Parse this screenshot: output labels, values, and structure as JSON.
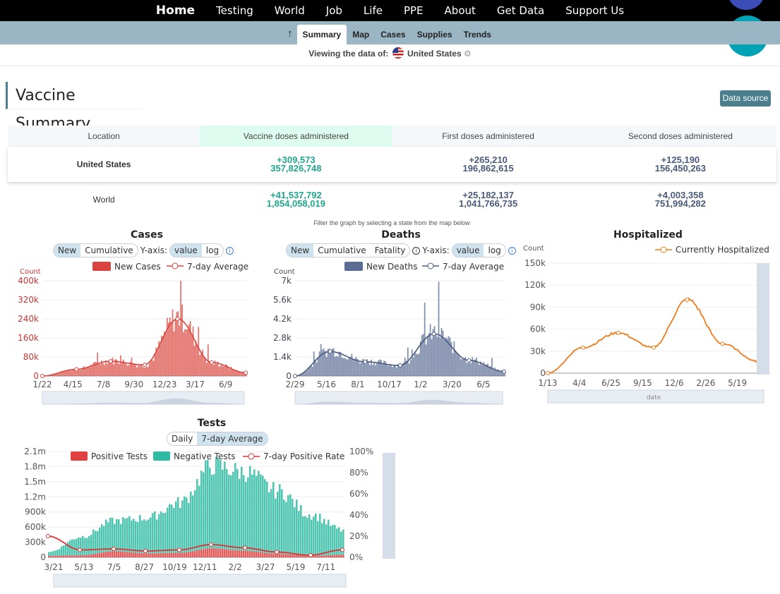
{
  "nav": {
    "items": [
      "Home",
      "Testing",
      "World",
      "Job",
      "Life",
      "PPE",
      "About",
      "Get Data",
      "Support Us"
    ]
  },
  "subnav": {
    "up": "↑",
    "tabs": [
      "Summary",
      "Map",
      "Cases",
      "Supplies",
      "Trends"
    ],
    "active": "Summary"
  },
  "viewing": {
    "label": "Viewing the data of:",
    "country": "United States"
  },
  "page_title": "Vaccine Summary",
  "data_source": "Data source",
  "vaccine_table": {
    "headers": [
      "Location",
      "Vaccine doses administered",
      "First doses administered",
      "Second doses administered"
    ],
    "rows": [
      {
        "location": "United States",
        "doses_change": "+309,573",
        "doses_total": "357,826,748",
        "first_change": "+265,210",
        "first_total": "196,862,615",
        "second_change": "+125,190",
        "second_total": "156,450,263"
      },
      {
        "location": "World",
        "doses_change": "+41,537,792",
        "doses_total": "1,854,058,019",
        "first_change": "+25,182,137",
        "first_total": "1,041,766,735",
        "second_change": "+4,003,358",
        "second_total": "751,994,282"
      }
    ]
  },
  "filter_note": "Filter the graph by selecting a state from the map below",
  "cases": {
    "title": "Cases",
    "toggle": [
      "New",
      "Cumulative"
    ],
    "yaxis_label": "Y-axis:",
    "yaxis": [
      "value",
      "log"
    ],
    "ylabel": "Count",
    "legend": [
      "New Cases",
      "7-day Average"
    ],
    "yticks": [
      "0",
      "80k",
      "160k",
      "240k",
      "320k",
      "400k"
    ],
    "xticks": [
      "1/22",
      "4/15",
      "7/8",
      "9/30",
      "12/23",
      "3/17",
      "6/9"
    ]
  },
  "deaths": {
    "title": "Deaths",
    "toggle": [
      "New",
      "Cumulative",
      "Fatality"
    ],
    "yaxis_label": "Y-axis:",
    "yaxis": [
      "value",
      "log"
    ],
    "ylabel": "Count",
    "legend": [
      "New Deaths",
      "7-day Average"
    ],
    "yticks": [
      "0",
      "1.4k",
      "2.8k",
      "4.2k",
      "5.6k",
      "7k"
    ],
    "xticks": [
      "2/29",
      "5/16",
      "8/1",
      "10/17",
      "1/2",
      "3/20",
      "6/5"
    ]
  },
  "hosp": {
    "title": "Hospitalized",
    "ylabel": "Count",
    "xlabel": "date",
    "legend": [
      "Currently Hospitalized"
    ],
    "yticks": [
      "0",
      "30k",
      "60k",
      "90k",
      "120k",
      "150k"
    ],
    "xticks": [
      "1/13",
      "4/4",
      "6/25",
      "9/15",
      "12/6",
      "2/26",
      "5/19"
    ]
  },
  "tests": {
    "title": "Tests",
    "toggle": [
      "Daily",
      "7-day Average"
    ],
    "legend": [
      "Positive Tests",
      "Negative Tests",
      "7-day Positive Rate"
    ],
    "yticks": [
      "0",
      "300k",
      "600k",
      "900k",
      "1.2m",
      "1.5m",
      "1.8m",
      "2.1m"
    ],
    "y2ticks": [
      "0%",
      "20%",
      "40%",
      "60%",
      "80%",
      "100%"
    ],
    "xticks": [
      "3/21",
      "5/13",
      "7/5",
      "8/27",
      "10/19",
      "12/11",
      "2/2",
      "3/27",
      "5/19",
      "7/11"
    ]
  },
  "colors": {
    "cases": "#d9453e",
    "deaths": "#5a6c94",
    "hosp": "#f07b1c",
    "neg": "#2fbba3",
    "nav": "#000000",
    "subnav": "#9ab5c4",
    "accent": "#4b7f8e"
  },
  "chart_data": [
    {
      "type": "bar",
      "title": "Cases",
      "ylabel": "Count",
      "ylim": [
        0,
        400000
      ],
      "x": [
        "1/22",
        "4/15",
        "7/8",
        "9/30",
        "12/23",
        "3/17",
        "6/9"
      ],
      "series": [
        {
          "name": "New Cases",
          "values": [
            0,
            30000,
            65000,
            45000,
            250000,
            55000,
            15000
          ]
        },
        {
          "name": "7-day Average",
          "values": [
            0,
            28000,
            62000,
            47000,
            240000,
            57000,
            14000
          ]
        }
      ]
    },
    {
      "type": "bar",
      "title": "Deaths",
      "ylabel": "Count",
      "ylim": [
        0,
        7000
      ],
      "x": [
        "2/29",
        "5/16",
        "8/1",
        "10/17",
        "1/2",
        "3/20",
        "6/5"
      ],
      "series": [
        {
          "name": "New Deaths",
          "values": [
            0,
            1900,
            1100,
            800,
            3200,
            1200,
            350
          ]
        },
        {
          "name": "7-day Average",
          "values": [
            0,
            1800,
            1050,
            780,
            3100,
            1150,
            330
          ]
        }
      ]
    },
    {
      "type": "line",
      "title": "Hospitalized",
      "ylabel": "Count",
      "xlabel": "date",
      "ylim": [
        0,
        150000
      ],
      "x": [
        "1/13",
        "4/4",
        "6/25",
        "9/15",
        "12/6",
        "2/26",
        "5/19"
      ],
      "series": [
        {
          "name": "Currently Hospitalized",
          "values": [
            0,
            35000,
            55000,
            35000,
            100000,
            40000,
            16000
          ]
        }
      ]
    },
    {
      "type": "bar",
      "title": "Tests",
      "ylim": [
        0,
        2100000
      ],
      "x": [
        "3/21",
        "5/13",
        "7/5",
        "8/27",
        "10/19",
        "12/11",
        "2/2",
        "3/27",
        "5/19",
        "7/11"
      ],
      "series": [
        {
          "name": "Positive Tests",
          "values": [
            30000,
            40000,
            120000,
            80000,
            90000,
            180000,
            130000,
            70000,
            30000,
            50000
          ]
        },
        {
          "name": "Negative Tests",
          "values": [
            80000,
            380000,
            620000,
            720000,
            1020000,
            1680000,
            1600000,
            1280000,
            840000,
            500000
          ]
        },
        {
          "name": "7-day Positive Rate",
          "values": [
            20,
            7,
            8,
            6,
            7,
            12,
            9,
            5,
            2,
            7
          ]
        }
      ]
    }
  ]
}
